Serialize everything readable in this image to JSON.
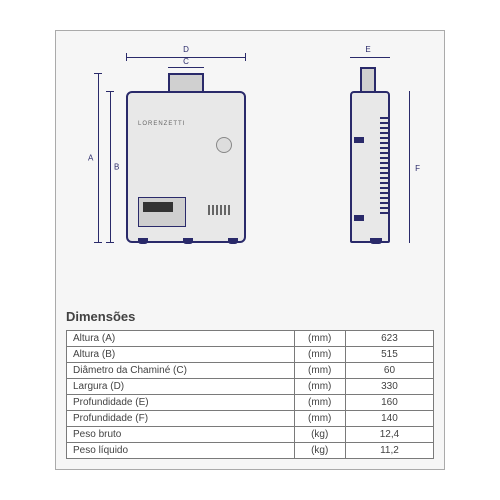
{
  "brand": "LORENZETTI",
  "diagram": {
    "front_labels": {
      "D": "D",
      "C": "C",
      "A": "A",
      "B": "B"
    },
    "side_labels": {
      "E": "E",
      "F": "F"
    },
    "line_color": "#2a2a6a",
    "body_fill": "#e8e8e8",
    "background": "#f6f6f6"
  },
  "section_title": "Dimensões",
  "table": {
    "columns": [
      "label",
      "unit",
      "value"
    ],
    "rows": [
      {
        "label": "Altura (A)",
        "unit": "(mm)",
        "value": "623"
      },
      {
        "label": "Altura (B)",
        "unit": "(mm)",
        "value": "515"
      },
      {
        "label": "Diâmetro da Chaminé (C)",
        "unit": "(mm)",
        "value": "60"
      },
      {
        "label": "Largura (D)",
        "unit": "(mm)",
        "value": "330"
      },
      {
        "label": "Profundidade (E)",
        "unit": "(mm)",
        "value": "160"
      },
      {
        "label": "Profundidade (F)",
        "unit": "(mm)",
        "value": "140"
      },
      {
        "label": "Peso bruto",
        "unit": "(kg)",
        "value": "12,4"
      },
      {
        "label": "Peso líquido",
        "unit": "(kg)",
        "value": "11,2"
      }
    ],
    "border_color": "#7a7a7a",
    "text_color": "#424242",
    "title_fontsize": 13,
    "row_fontsize": 10
  }
}
